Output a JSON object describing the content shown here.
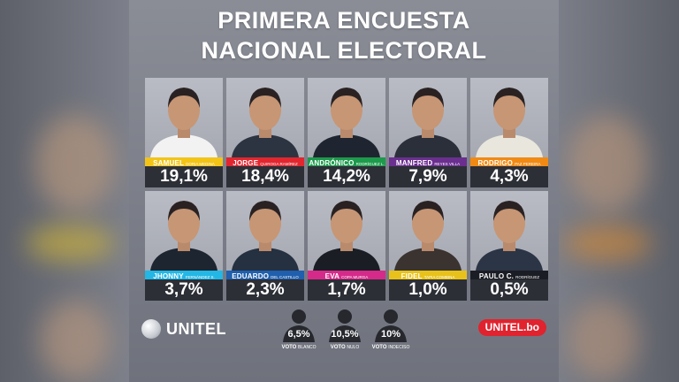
{
  "title_line1": "PRIMERA ENCUESTA",
  "title_line2": "NACIONAL ELECTORAL",
  "chart_data": {
    "type": "bar",
    "title": "PRIMERA ENCUESTA NACIONAL ELECTORAL",
    "unit": "%",
    "categories": [
      "SAMUEL DORIA MEDINA",
      "JORGE QUIROGA RAMÍREZ",
      "ANDRÓNICO RODRÍGUEZ L.",
      "MANFRED REYES VILLA",
      "RODRIGO PAZ PEREIRA",
      "JHONNY FERNÁNDEZ S.",
      "EDUARDO DEL CASTILLO",
      "EVA COPA MURGA",
      "FIDEL TAPIA COMBINA",
      "PAULO C. RODRÍGUEZ"
    ],
    "values": [
      19.1,
      18.4,
      14.2,
      7.9,
      4.3,
      3.7,
      2.3,
      1.7,
      1.0,
      0.5
    ],
    "candidates": [
      {
        "first": "SAMUEL",
        "last": "DORIA MEDINA",
        "value": 19.1,
        "label": "19,1%",
        "color": "#f2c417",
        "shirt": "#f2f2f2"
      },
      {
        "first": "JORGE",
        "last": "QUIROGA RAMÍREZ",
        "value": 18.4,
        "label": "18,4%",
        "color": "#e2262f",
        "shirt": "#2b3440"
      },
      {
        "first": "ANDRÓNICO",
        "last": "RODRÍGUEZ L.",
        "value": 14.2,
        "label": "14,2%",
        "color": "#1d9a4c",
        "shirt": "#1f2530"
      },
      {
        "first": "MANFRED",
        "last": "REYES VILLA",
        "value": 7.9,
        "label": "7,9%",
        "color": "#6b2f8f",
        "shirt": "#2a2f3a"
      },
      {
        "first": "RODRIGO",
        "last": "PAZ PEREIRA",
        "value": 4.3,
        "label": "4,3%",
        "color": "#f08a14",
        "shirt": "#e9e6dd"
      },
      {
        "first": "JHONNY",
        "last": "FERNÁNDEZ S.",
        "value": 3.7,
        "label": "3,7%",
        "color": "#23b7e5",
        "shirt": "#1d2530"
      },
      {
        "first": "EDUARDO",
        "last": "DEL CASTILLO",
        "value": 2.3,
        "label": "2,3%",
        "color": "#1f5fad",
        "shirt": "#253040"
      },
      {
        "first": "EVA",
        "last": "COPA MURGA",
        "value": 1.7,
        "label": "1,7%",
        "color": "#d62a8a",
        "shirt": "#1a1d24"
      },
      {
        "first": "FIDEL",
        "last": "TAPIA COMBINA",
        "value": 1.0,
        "label": "1,0%",
        "color": "#e8c21a",
        "shirt": "#3a3330"
      },
      {
        "first": "PAULO C.",
        "last": "RODRÍGUEZ",
        "value": 0.5,
        "label": "0,5%",
        "color": "#1b1d24",
        "shirt": "#2b3545"
      }
    ],
    "extra_votes": [
      {
        "label": "6,5%",
        "caption_main": "VOTO",
        "caption_sub": "BLANCO",
        "value": 6.5
      },
      {
        "label": "10,5%",
        "caption_main": "VOTO",
        "caption_sub": "NULO",
        "value": 10.5
      },
      {
        "label": "10%",
        "caption_main": "VOTO",
        "caption_sub": "INDECISO",
        "value": 10.0
      }
    ]
  },
  "logo_left": "UNITEL",
  "logo_right": "UNITEL.bo",
  "colors": {
    "percent_box": "#2d2f37",
    "logo_right_bg": "#e0232e"
  }
}
